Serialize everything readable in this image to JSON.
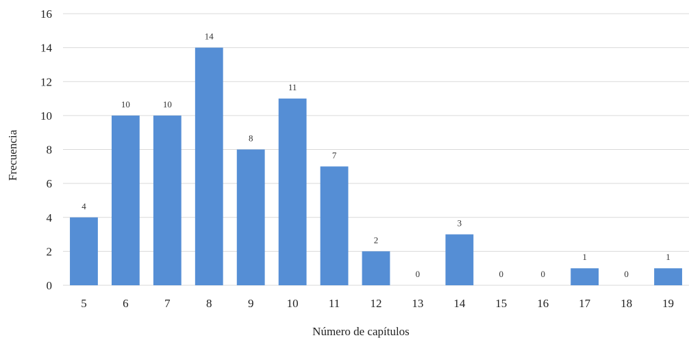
{
  "chart_data": {
    "type": "bar",
    "title": "",
    "xlabel": "Número de capítulos",
    "ylabel": "Frecuencia",
    "categories": [
      "5",
      "6",
      "7",
      "8",
      "9",
      "10",
      "11",
      "12",
      "13",
      "14",
      "15",
      "16",
      "17",
      "18",
      "19"
    ],
    "values": [
      4,
      10,
      10,
      14,
      8,
      11,
      7,
      2,
      0,
      3,
      0,
      0,
      1,
      0,
      1
    ],
    "data_labels": [
      "4",
      "10",
      "10",
      "14",
      "8",
      "11",
      "7",
      "2",
      "0",
      "3",
      "0",
      "0",
      "1",
      "0",
      "1"
    ],
    "yticks": [
      "0",
      "2",
      "4",
      "6",
      "8",
      "10",
      "12",
      "14",
      "16"
    ],
    "ylim": [
      0,
      16
    ],
    "grid": true,
    "legend": "none",
    "bar_color": "#558ED5",
    "grid_color": "#D9D9D9"
  }
}
